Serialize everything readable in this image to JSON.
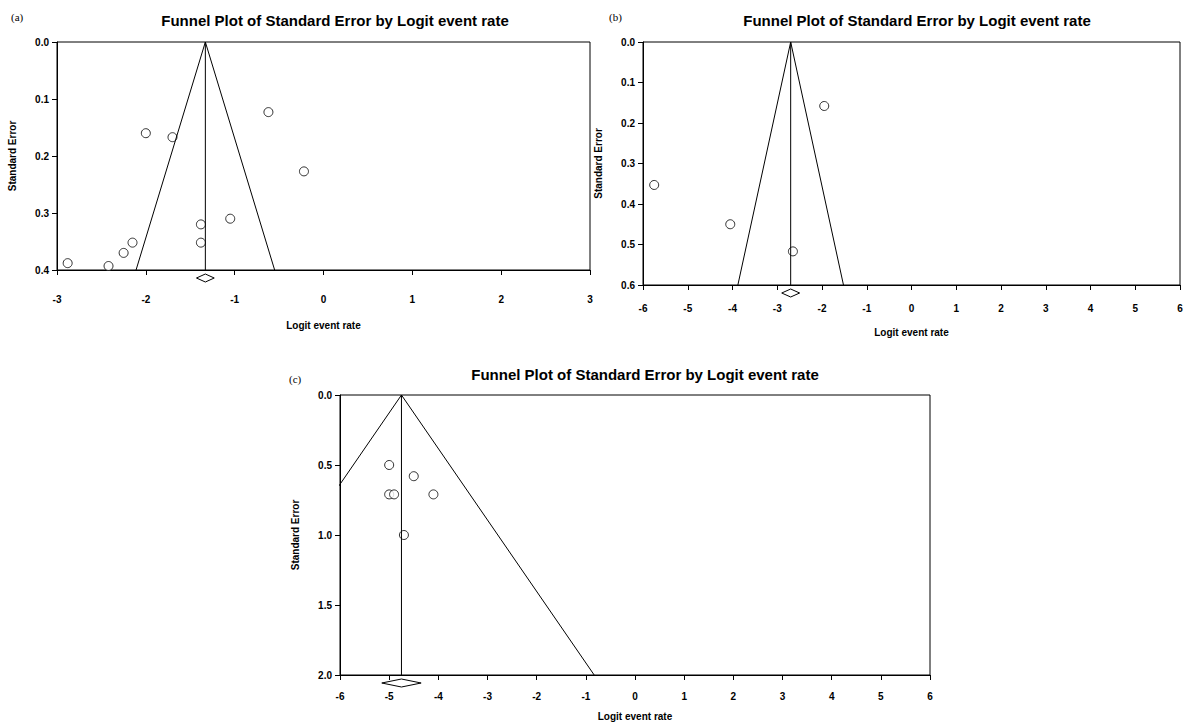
{
  "chart_data": [
    {
      "type": "scatter",
      "panel_label": "(a)",
      "title": "Funnel Plot of Standard Error by Logit event rate",
      "x_label": "Logit event rate",
      "y_label": "Standard Error",
      "x": [
        -2.0,
        -1.7,
        -0.62,
        -0.22,
        -1.05,
        -1.38,
        -1.38,
        -2.15,
        -2.25,
        -2.42,
        -2.88
      ],
      "values": [
        0.16,
        0.167,
        0.123,
        0.227,
        0.31,
        0.32,
        0.352,
        0.352,
        0.37,
        0.393,
        0.388
      ],
      "xlim": [
        -3,
        3
      ],
      "xticks": [
        -3,
        -2,
        -1,
        0,
        1,
        2,
        3
      ],
      "ylim": [
        0,
        0.4
      ],
      "yticks": [
        {
          "value": 0,
          "label": "0.0"
        },
        0.1,
        0.2,
        0.3,
        0.4
      ],
      "pooled": -1.33,
      "pooled_ci": [
        -1.43,
        -1.23
      ],
      "funnel_lower": [
        [
          -1.33,
          0
        ],
        [
          -2.11,
          0.4
        ]
      ],
      "funnel_upper": [
        [
          -1.33,
          0
        ],
        [
          -0.55,
          0.4
        ]
      ],
      "marker": "circle",
      "color": "#000000",
      "grid": false
    },
    {
      "type": "scatter",
      "panel_label": "(b)",
      "title": "Funnel Plot of Standard Error by Logit event rate",
      "x_label": "Logit event rate",
      "y_label": "Standard Error",
      "x": [
        -5.75,
        -4.05,
        -1.95,
        -2.65
      ],
      "values": [
        0.353,
        0.45,
        0.158,
        0.517
      ],
      "xlim": [
        -6,
        6
      ],
      "xticks": [
        -6,
        -5,
        -4,
        -3,
        -2,
        -1,
        0,
        1,
        2,
        3,
        4,
        5,
        6
      ],
      "ylim": [
        0,
        0.6
      ],
      "yticks": [
        {
          "value": 0,
          "label": "0.0"
        },
        0.1,
        0.2,
        0.3,
        0.4,
        0.5,
        0.6
      ],
      "pooled": -2.7,
      "pooled_ci": [
        -2.9,
        -2.5
      ],
      "funnel_lower": [
        [
          -2.7,
          0
        ],
        [
          -3.88,
          0.6
        ]
      ],
      "funnel_upper": [
        [
          -2.7,
          0
        ],
        [
          -1.52,
          0.6
        ]
      ],
      "marker": "circle",
      "color": "#000000",
      "grid": false
    },
    {
      "type": "scatter",
      "panel_label": "(c)",
      "title": "Funnel Plot of Standard Error by Logit event rate",
      "x_label": "Logit event rate",
      "y_label": "Standard Error",
      "x": [
        -5.0,
        -4.5,
        -5.0,
        -4.9,
        -4.1,
        -4.7
      ],
      "values": [
        0.5,
        0.58,
        0.71,
        0.71,
        0.71,
        1.0
      ],
      "xlim": [
        -6,
        6
      ],
      "xticks": [
        -6,
        -5,
        -4,
        -3,
        -2,
        -1,
        0,
        1,
        2,
        3,
        4,
        5,
        6
      ],
      "ylim": [
        0,
        2
      ],
      "yticks": [
        {
          "value": 0,
          "label": "0.0"
        },
        0.5,
        {
          "value": 1,
          "label": "1.0"
        },
        1.5,
        {
          "value": 2,
          "label": "2.0"
        }
      ],
      "pooled": -4.75,
      "pooled_ci": [
        -5.15,
        -4.35
      ],
      "funnel_lower": [
        [
          -4.75,
          0
        ],
        [
          -8.67,
          2
        ]
      ],
      "funnel_upper": [
        [
          -4.75,
          0
        ],
        [
          -0.83,
          2
        ]
      ],
      "marker": "circle",
      "color": "#000000",
      "grid": false
    }
  ]
}
